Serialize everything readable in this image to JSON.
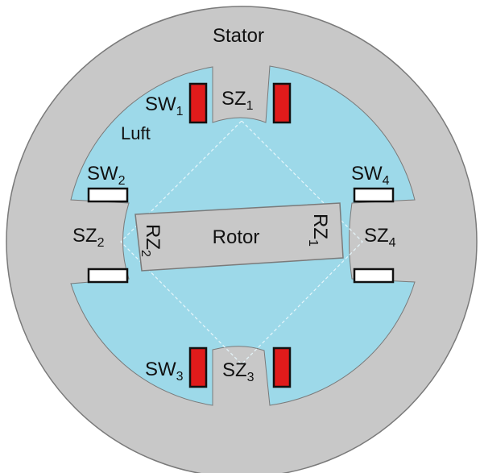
{
  "labels": {
    "stator": "Stator",
    "air": "Luft",
    "rotor": "Rotor",
    "sz1": {
      "main": "SZ",
      "sub": "1"
    },
    "sz2": {
      "main": "SZ",
      "sub": "2"
    },
    "sz3": {
      "main": "SZ",
      "sub": "3"
    },
    "sz4": {
      "main": "SZ",
      "sub": "4"
    },
    "rz1": {
      "main": "RZ",
      "sub": "1"
    },
    "rz2": {
      "main": "RZ",
      "sub": "2"
    },
    "sw1": {
      "main": "SW",
      "sub": "1"
    },
    "sw2": {
      "main": "SW",
      "sub": "2"
    },
    "sw3": {
      "main": "SW",
      "sub": "3"
    },
    "sw4": {
      "main": "SW",
      "sub": "4"
    }
  },
  "colors": {
    "stator": "#c8c8c8",
    "air": "#9dd9e9",
    "rotor": "#c8c8c8",
    "winding_active": "#e01b1b",
    "winding_inactive": "#ffffff",
    "sw_label": "#dd2222",
    "air_label": "#1a73c9",
    "outline": "#7a7a7a"
  }
}
